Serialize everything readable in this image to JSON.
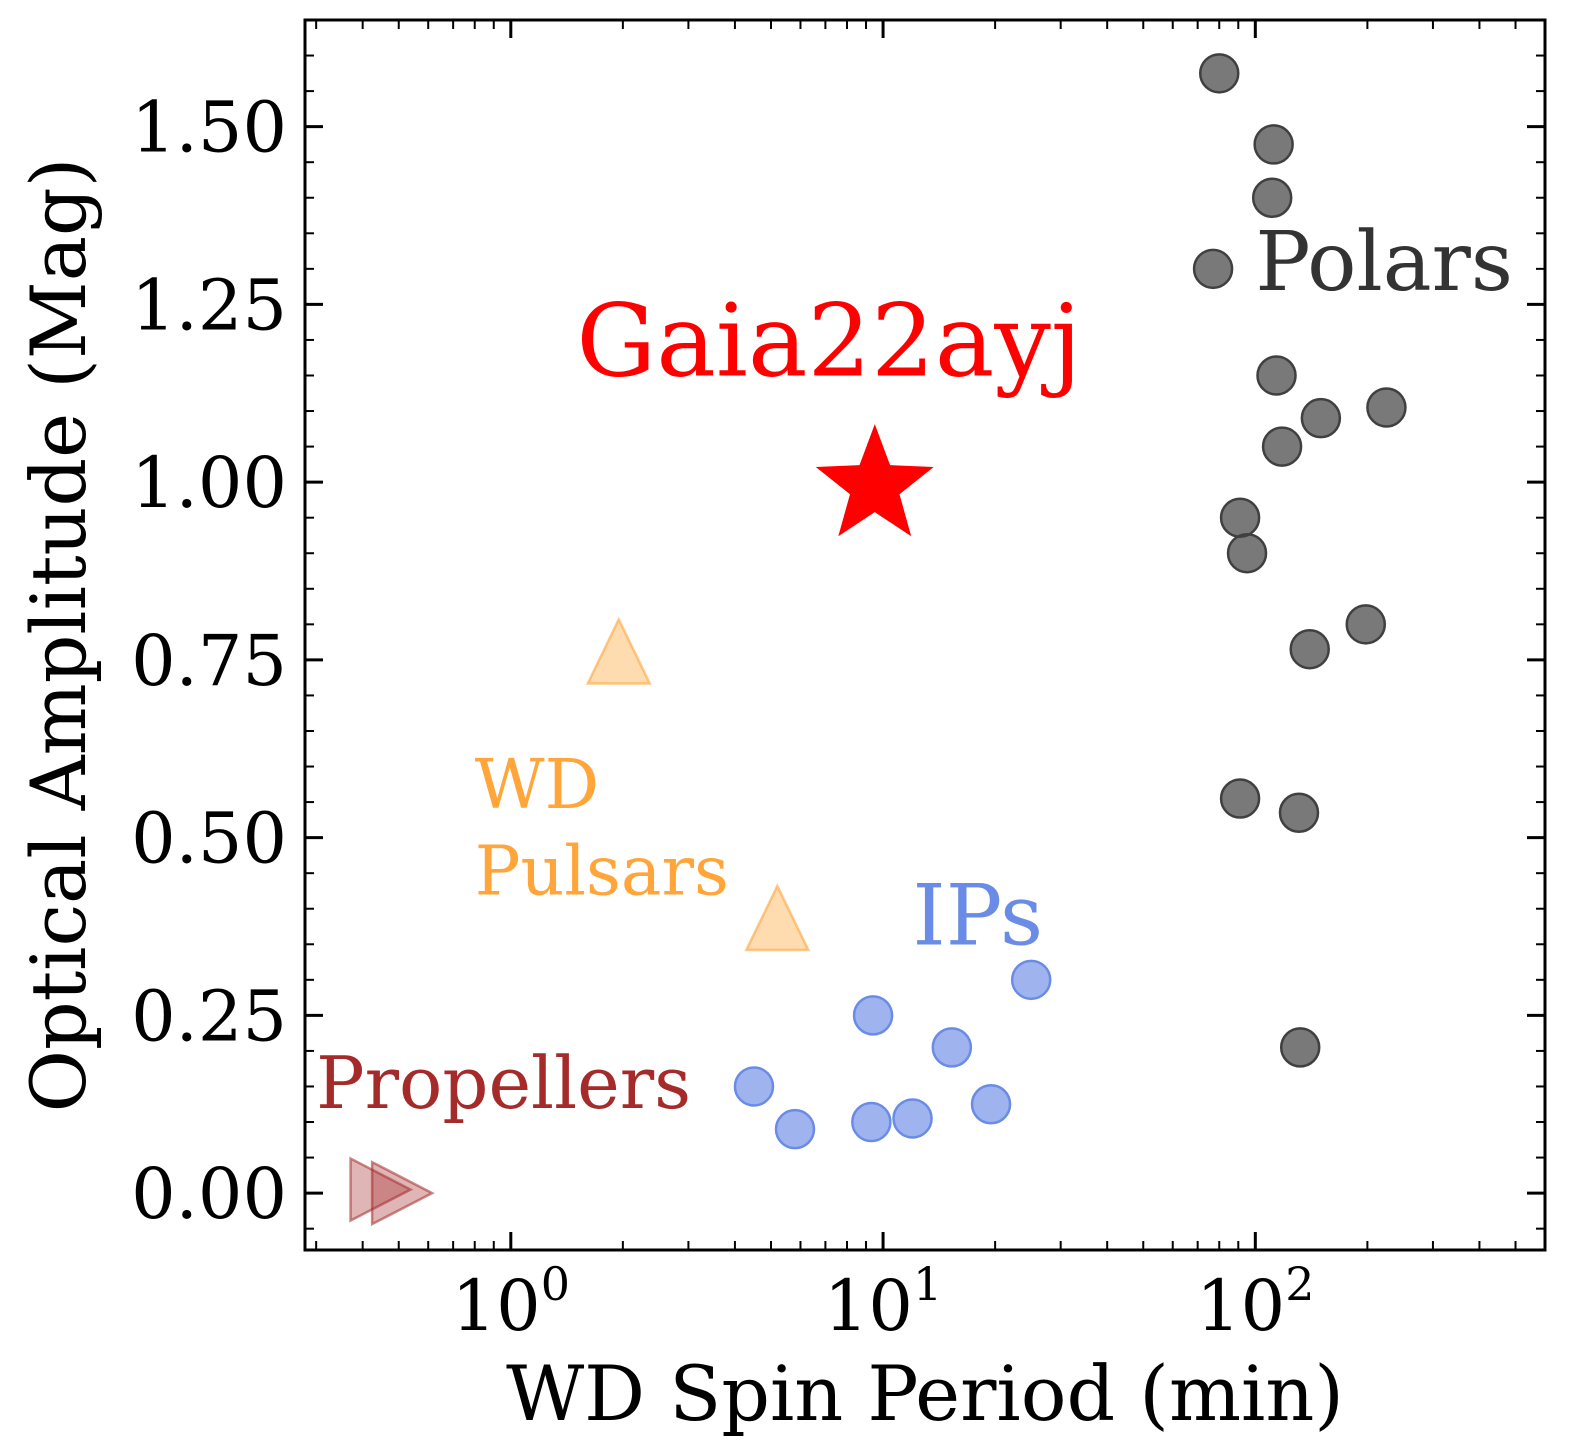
{
  "chart_data": {
    "type": "scatter",
    "title": "",
    "xlabel": "WD Spin Period (min)",
    "ylabel": "Optical Amplitude (Mag)",
    "xscale": "log",
    "xlim": [
      0.28,
      600
    ],
    "ylim": [
      -0.08,
      1.65
    ],
    "x_ticks": [
      {
        "value": 1,
        "base": "10",
        "exp": "0"
      },
      {
        "value": 10,
        "base": "10",
        "exp": "1"
      },
      {
        "value": 100,
        "base": "10",
        "exp": "2"
      }
    ],
    "y_ticks": [
      {
        "value": 0.0,
        "label": "0.00"
      },
      {
        "value": 0.25,
        "label": "0.25"
      },
      {
        "value": 0.5,
        "label": "0.50"
      },
      {
        "value": 0.75,
        "label": "0.75"
      },
      {
        "value": 1.0,
        "label": "1.00"
      },
      {
        "value": 1.25,
        "label": "1.25"
      },
      {
        "value": 1.5,
        "label": "1.50"
      }
    ],
    "series": [
      {
        "name": "Polars",
        "marker": "circle",
        "color": "#404040",
        "points": [
          {
            "x": 80,
            "y": 1.575
          },
          {
            "x": 112,
            "y": 1.475
          },
          {
            "x": 111,
            "y": 1.4
          },
          {
            "x": 77,
            "y": 1.3
          },
          {
            "x": 114,
            "y": 1.15
          },
          {
            "x": 225,
            "y": 1.105
          },
          {
            "x": 150,
            "y": 1.09
          },
          {
            "x": 118,
            "y": 1.05
          },
          {
            "x": 91,
            "y": 0.95
          },
          {
            "x": 95,
            "y": 0.9
          },
          {
            "x": 198,
            "y": 0.8
          },
          {
            "x": 140,
            "y": 0.765
          },
          {
            "x": 91,
            "y": 0.555
          },
          {
            "x": 131,
            "y": 0.535
          },
          {
            "x": 132,
            "y": 0.205
          }
        ]
      },
      {
        "name": "IPs",
        "marker": "circle",
        "color": "#6b8ce6",
        "points": [
          {
            "x": 25,
            "y": 0.3
          },
          {
            "x": 9.4,
            "y": 0.25
          },
          {
            "x": 15.3,
            "y": 0.205
          },
          {
            "x": 4.5,
            "y": 0.15
          },
          {
            "x": 19.5,
            "y": 0.125
          },
          {
            "x": 5.8,
            "y": 0.09
          },
          {
            "x": 9.3,
            "y": 0.1
          },
          {
            "x": 12.0,
            "y": 0.105
          }
        ]
      },
      {
        "name": "WD Pulsars",
        "marker": "triangle-up",
        "color": "#ffa53a",
        "points": [
          {
            "x": 1.95,
            "y": 0.745
          },
          {
            "x": 5.2,
            "y": 0.37
          }
        ]
      },
      {
        "name": "Propellers",
        "marker": "triangle-right",
        "color": "#a52a2a",
        "points": [
          {
            "x": 0.42,
            "y": 0.005
          },
          {
            "x": 0.48,
            "y": 0.0
          }
        ]
      },
      {
        "name": "Gaia22ayj",
        "marker": "star",
        "color": "#ff0000",
        "points": [
          {
            "x": 9.5,
            "y": 1.0
          }
        ]
      }
    ],
    "annotations": [
      {
        "lines": [
          "Polars"
        ],
        "x": 100,
        "y": 1.27,
        "color": "#333333",
        "size": 82
      },
      {
        "lines": [
          "Gaia22ayj"
        ],
        "x": 1.5,
        "y": 1.15,
        "color": "#ff0000",
        "size": 100
      },
      {
        "lines": [
          "IPs"
        ],
        "x": 12,
        "y": 0.35,
        "color": "#6b8ce6",
        "size": 84
      },
      {
        "lines": [
          "WD",
          "Pulsars"
        ],
        "x": 0.8,
        "y": 0.42,
        "color": "#ffa53a",
        "size": 68
      },
      {
        "lines": [
          "Propellers"
        ],
        "x": 0.3,
        "y": 0.12,
        "color": "#a52a2a",
        "size": 72
      }
    ]
  }
}
